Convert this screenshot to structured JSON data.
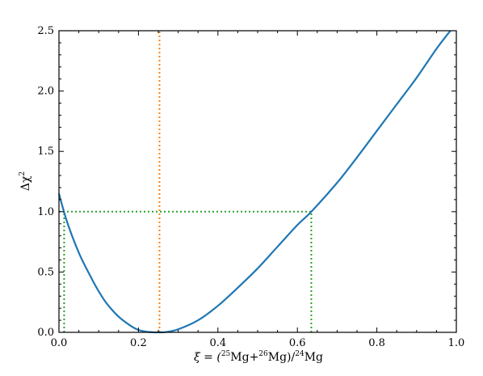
{
  "chart_data": {
    "type": "line",
    "xlabel_parts": {
      "prefix": "ξ = (",
      "sup1": "25",
      "mid1": "Mg+",
      "sup2": "26",
      "mid2": "Mg)/",
      "sup3": "24",
      "suffix": "Mg"
    },
    "ylabel_parts": {
      "base": "Δχ",
      "sup": "2"
    },
    "xlim": [
      0.0,
      1.0
    ],
    "ylim": [
      0.0,
      2.5
    ],
    "xticks": [
      "0.0",
      "0.2",
      "0.4",
      "0.6",
      "0.8",
      "1.0"
    ],
    "yticks": [
      "0.0",
      "0.5",
      "1.0",
      "1.5",
      "2.0",
      "2.5"
    ],
    "grid": false,
    "series": [
      {
        "color": "#1f77b4",
        "x": [
          0.0,
          0.02,
          0.05,
          0.08,
          0.1,
          0.12,
          0.15,
          0.18,
          0.2,
          0.22,
          0.24,
          0.253,
          0.27,
          0.3,
          0.35,
          0.4,
          0.45,
          0.5,
          0.55,
          0.6,
          0.635,
          0.7,
          0.75,
          0.8,
          0.85,
          0.9,
          0.95,
          0.985
        ],
        "y": [
          1.15,
          0.92,
          0.66,
          0.46,
          0.34,
          0.24,
          0.13,
          0.055,
          0.02,
          0.005,
          0.0,
          0.0,
          0.003,
          0.025,
          0.1,
          0.22,
          0.37,
          0.53,
          0.71,
          0.89,
          1.0,
          1.24,
          1.45,
          1.67,
          1.89,
          2.11,
          2.35,
          2.5
        ]
      }
    ],
    "reference_lines": [
      {
        "orientation": "vertical",
        "x": 0.253,
        "y_range": [
          0.0,
          2.5
        ],
        "color": "#ff7f0e",
        "style": "dotted"
      },
      {
        "orientation": "horizontal",
        "y": 1.0,
        "x_range": [
          0.0,
          0.635
        ],
        "color": "#2ca02c",
        "style": "dotted"
      },
      {
        "orientation": "vertical",
        "x": 0.013,
        "y_range": [
          0.0,
          1.0
        ],
        "color": "#2ca02c",
        "style": "dotted"
      },
      {
        "orientation": "vertical",
        "x": 0.635,
        "y_range": [
          0.0,
          1.0
        ],
        "color": "#2ca02c",
        "style": "dotted"
      }
    ]
  }
}
